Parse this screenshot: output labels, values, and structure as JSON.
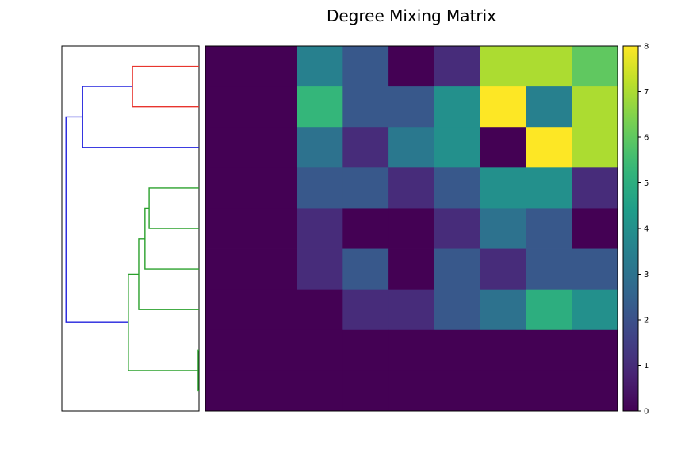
{
  "chart_data": {
    "type": "heatmap",
    "title": "Degree Mixing Matrix",
    "xlabel": "",
    "ylabel": "",
    "rows": 9,
    "cols": 9,
    "values": [
      [
        0,
        0,
        3.5,
        2.2,
        0,
        1,
        7,
        7,
        6
      ],
      [
        0,
        0,
        5.3,
        2.2,
        2.2,
        4,
        8,
        3.5,
        7
      ],
      [
        0,
        0,
        3,
        1,
        3.2,
        4,
        0,
        8,
        7
      ],
      [
        0,
        0,
        2.2,
        2.2,
        1,
        2.2,
        4,
        4,
        1
      ],
      [
        0,
        0,
        1,
        0,
        0,
        1,
        3,
        2.2,
        0
      ],
      [
        0,
        0,
        1,
        2.2,
        0,
        2.2,
        1,
        2.2,
        2.2
      ],
      [
        0,
        0,
        0,
        1,
        1,
        2.2,
        3,
        5,
        4
      ],
      [
        0,
        0,
        0,
        0,
        0,
        0,
        0,
        0,
        0
      ],
      [
        0,
        0,
        0,
        0,
        0,
        0,
        0,
        0,
        0
      ]
    ],
    "vmin": 0,
    "vmax": 8,
    "colormap": "viridis",
    "colorbar_ticks": [
      "0",
      "1",
      "2",
      "3",
      "4",
      "5",
      "6",
      "7",
      "8"
    ],
    "dendrogram": {
      "orientation": "left",
      "leaf_order": [
        0,
        1,
        2,
        3,
        4,
        5,
        6,
        7,
        8
      ],
      "links": [
        {
          "left": 0,
          "right": 1,
          "height": 1.6,
          "color": "#e8352e"
        },
        {
          "left": 7,
          "right": 8,
          "height": 0.02,
          "color": "#2aa02c"
        },
        {
          "left": 3,
          "right": 4,
          "height": 1.2,
          "color": "#2aa02c"
        },
        {
          "left": "3-4",
          "right": 5,
          "height": 1.3,
          "color": "#2aa02c"
        },
        {
          "left": "3-5",
          "right": 6,
          "height": 1.45,
          "color": "#2aa02c"
        },
        {
          "left": "3-6",
          "right": "7-8",
          "height": 1.7,
          "color": "#2aa02c"
        },
        {
          "left": "0-1",
          "right": 2,
          "height": 2.8,
          "color": "#2222dd"
        },
        {
          "left": "0-2",
          "right": "3-8",
          "height": 3.2,
          "color": "#2222dd"
        }
      ]
    }
  }
}
